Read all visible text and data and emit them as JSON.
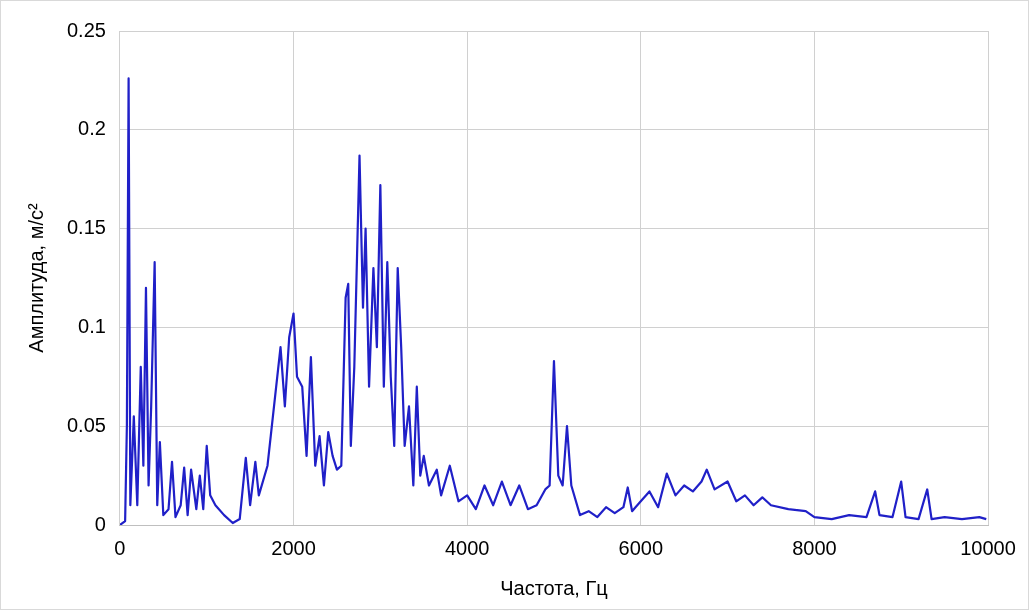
{
  "chart_data": {
    "type": "line",
    "xlabel": "Частота, Гц",
    "ylabel": "Амплитуда, м/с²",
    "xlim": [
      0,
      10000
    ],
    "xticks": [
      0,
      2000,
      4000,
      6000,
      8000,
      10000
    ],
    "ylim": [
      0,
      0.25
    ],
    "yticks": [
      0,
      0.05,
      0.1,
      0.15,
      0.2,
      0.25
    ],
    "grid": true,
    "marker": "none",
    "line_style": "solid",
    "series": [
      {
        "color": "#2020c8",
        "x": [
          0,
          60,
          80,
          100,
          120,
          160,
          200,
          240,
          270,
          300,
          330,
          360,
          400,
          430,
          460,
          500,
          560,
          600,
          640,
          700,
          740,
          780,
          820,
          880,
          920,
          960,
          1000,
          1040,
          1100,
          1200,
          1300,
          1380,
          1450,
          1500,
          1560,
          1600,
          1700,
          1800,
          1850,
          1900,
          1950,
          2000,
          2040,
          2100,
          2150,
          2200,
          2250,
          2300,
          2350,
          2400,
          2450,
          2500,
          2550,
          2600,
          2630,
          2660,
          2700,
          2760,
          2800,
          2830,
          2870,
          2920,
          2960,
          3000,
          3040,
          3080,
          3120,
          3160,
          3200,
          3240,
          3280,
          3330,
          3380,
          3420,
          3460,
          3500,
          3560,
          3650,
          3700,
          3800,
          3900,
          4000,
          4100,
          4200,
          4300,
          4400,
          4500,
          4600,
          4700,
          4800,
          4900,
          4950,
          5000,
          5050,
          5100,
          5150,
          5200,
          5300,
          5400,
          5500,
          5600,
          5700,
          5800,
          5850,
          5900,
          6000,
          6100,
          6200,
          6300,
          6400,
          6500,
          6600,
          6700,
          6760,
          6850,
          7000,
          7100,
          7200,
          7300,
          7400,
          7500,
          7700,
          7900,
          8000,
          8200,
          8400,
          8600,
          8700,
          8750,
          8900,
          9000,
          9050,
          9200,
          9300,
          9350,
          9500,
          9700,
          9900,
          9980
        ],
        "values": [
          0,
          0.002,
          0.05,
          0.226,
          0.01,
          0.055,
          0.01,
          0.08,
          0.03,
          0.12,
          0.02,
          0.06,
          0.133,
          0.01,
          0.042,
          0.005,
          0.008,
          0.032,
          0.004,
          0.01,
          0.029,
          0.005,
          0.028,
          0.008,
          0.025,
          0.008,
          0.04,
          0.015,
          0.01,
          0.005,
          0.001,
          0.003,
          0.034,
          0.01,
          0.032,
          0.015,
          0.03,
          0.07,
          0.09,
          0.06,
          0.095,
          0.107,
          0.075,
          0.07,
          0.035,
          0.085,
          0.03,
          0.045,
          0.02,
          0.047,
          0.035,
          0.028,
          0.03,
          0.115,
          0.122,
          0.04,
          0.08,
          0.187,
          0.11,
          0.15,
          0.07,
          0.13,
          0.09,
          0.172,
          0.07,
          0.133,
          0.075,
          0.04,
          0.13,
          0.09,
          0.04,
          0.06,
          0.02,
          0.07,
          0.025,
          0.035,
          0.02,
          0.028,
          0.015,
          0.03,
          0.012,
          0.015,
          0.008,
          0.02,
          0.01,
          0.022,
          0.01,
          0.02,
          0.008,
          0.01,
          0.018,
          0.02,
          0.083,
          0.025,
          0.02,
          0.05,
          0.02,
          0.005,
          0.007,
          0.004,
          0.009,
          0.006,
          0.009,
          0.019,
          0.007,
          0.012,
          0.017,
          0.009,
          0.026,
          0.015,
          0.02,
          0.017,
          0.022,
          0.028,
          0.018,
          0.022,
          0.012,
          0.015,
          0.01,
          0.014,
          0.01,
          0.008,
          0.007,
          0.004,
          0.003,
          0.005,
          0.004,
          0.017,
          0.005,
          0.004,
          0.022,
          0.004,
          0.003,
          0.018,
          0.003,
          0.004,
          0.003,
          0.004,
          0.003
        ]
      }
    ]
  }
}
